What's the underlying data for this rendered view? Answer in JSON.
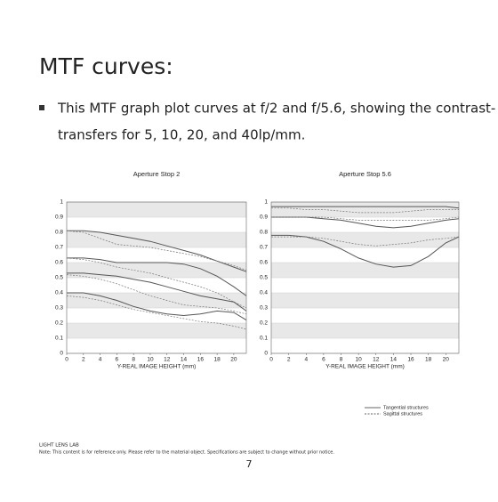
{
  "title": "MTF curves:",
  "bullet": [
    "This MTF graph plot curves at f/2 and f/5.6, showing the contrast-",
    "transfers for 5, 10, 20, and 40lp/mm."
  ],
  "chart_data": [
    {
      "type": "line",
      "title": "Aperture Stop  2",
      "x_label": "Y-REAL IMAGE HEIGHT (mm)",
      "x": [
        0,
        2,
        4,
        6,
        8,
        10,
        12,
        14,
        16,
        18,
        20,
        21.5
      ],
      "xlim": [
        0,
        21.5
      ],
      "xticks": [
        0,
        2,
        4,
        6,
        8,
        10,
        12,
        14,
        16,
        18,
        20
      ],
      "ylim": [
        0,
        1
      ],
      "yticks": [
        0,
        0.1,
        0.2,
        0.3,
        0.4,
        0.5,
        0.6,
        0.7,
        0.8,
        0.9,
        1
      ],
      "bands": true,
      "series": [
        {
          "style": "solid",
          "color": "#555555",
          "values": [
            0.81,
            0.81,
            0.8,
            0.78,
            0.76,
            0.74,
            0.71,
            0.68,
            0.65,
            0.61,
            0.57,
            0.54
          ]
        },
        {
          "style": "dashed",
          "color": "#777777",
          "values": [
            0.81,
            0.8,
            0.76,
            0.72,
            0.71,
            0.7,
            0.68,
            0.66,
            0.64,
            0.61,
            0.58,
            0.55
          ]
        },
        {
          "style": "solid",
          "color": "#555555",
          "values": [
            0.63,
            0.63,
            0.62,
            0.6,
            0.6,
            0.6,
            0.6,
            0.59,
            0.56,
            0.51,
            0.44,
            0.38
          ]
        },
        {
          "style": "dashed",
          "color": "#777777",
          "values": [
            0.63,
            0.62,
            0.6,
            0.57,
            0.55,
            0.53,
            0.5,
            0.47,
            0.44,
            0.4,
            0.34,
            0.3
          ]
        },
        {
          "style": "solid",
          "color": "#555555",
          "values": [
            0.53,
            0.53,
            0.52,
            0.51,
            0.49,
            0.47,
            0.44,
            0.41,
            0.38,
            0.36,
            0.34,
            0.28
          ]
        },
        {
          "style": "dashed",
          "color": "#777777",
          "values": [
            0.52,
            0.51,
            0.49,
            0.46,
            0.42,
            0.38,
            0.35,
            0.32,
            0.31,
            0.3,
            0.28,
            0.26
          ]
        },
        {
          "style": "solid",
          "color": "#555555",
          "values": [
            0.4,
            0.4,
            0.38,
            0.35,
            0.31,
            0.28,
            0.26,
            0.25,
            0.26,
            0.28,
            0.27,
            0.22
          ]
        },
        {
          "style": "dashed",
          "color": "#777777",
          "values": [
            0.38,
            0.37,
            0.35,
            0.32,
            0.29,
            0.27,
            0.25,
            0.23,
            0.21,
            0.2,
            0.18,
            0.16
          ]
        }
      ]
    },
    {
      "type": "line",
      "title": "Aperture Stop  5.6",
      "x_label": "Y-REAL IMAGE HEIGHT (mm)",
      "x": [
        0,
        2,
        4,
        6,
        8,
        10,
        12,
        14,
        16,
        18,
        20,
        21.5
      ],
      "xlim": [
        0,
        21.5
      ],
      "xticks": [
        0,
        2,
        4,
        6,
        8,
        10,
        12,
        14,
        16,
        18,
        20
      ],
      "ylim": [
        0,
        1
      ],
      "yticks": [
        0,
        0.1,
        0.2,
        0.3,
        0.4,
        0.5,
        0.6,
        0.7,
        0.8,
        0.9,
        1
      ],
      "bands": true,
      "series": [
        {
          "style": "solid",
          "color": "#555555",
          "values": [
            0.97,
            0.97,
            0.97,
            0.97,
            0.97,
            0.97,
            0.97,
            0.97,
            0.97,
            0.97,
            0.97,
            0.96
          ]
        },
        {
          "style": "dashed",
          "color": "#777777",
          "values": [
            0.96,
            0.96,
            0.95,
            0.95,
            0.94,
            0.93,
            0.93,
            0.93,
            0.94,
            0.95,
            0.95,
            0.95
          ]
        },
        {
          "style": "solid",
          "color": "#555555",
          "values": [
            0.9,
            0.9,
            0.9,
            0.89,
            0.88,
            0.86,
            0.84,
            0.83,
            0.84,
            0.86,
            0.88,
            0.89
          ]
        },
        {
          "style": "dashed",
          "color": "#777777",
          "values": [
            0.9,
            0.9,
            0.9,
            0.9,
            0.89,
            0.88,
            0.88,
            0.88,
            0.88,
            0.88,
            0.89,
            0.9
          ]
        },
        {
          "style": "solid",
          "color": "#555555",
          "values": [
            0.78,
            0.78,
            0.77,
            0.74,
            0.69,
            0.63,
            0.59,
            0.57,
            0.58,
            0.64,
            0.73,
            0.77
          ]
        },
        {
          "style": "dashed",
          "color": "#777777",
          "values": [
            0.77,
            0.77,
            0.77,
            0.76,
            0.74,
            0.72,
            0.71,
            0.72,
            0.73,
            0.75,
            0.76,
            0.77
          ]
        }
      ]
    }
  ],
  "legend": [
    {
      "label": "Tangential structures",
      "style": "solid"
    },
    {
      "label": "Sagittal structures",
      "style": "dashed"
    }
  ],
  "footer": {
    "brand": "LIGHT LENS LAB",
    "note": "Note: This content is for reference only. Please refer to the material object. Specifications are subject to change without prior notice.",
    "page": "7"
  }
}
